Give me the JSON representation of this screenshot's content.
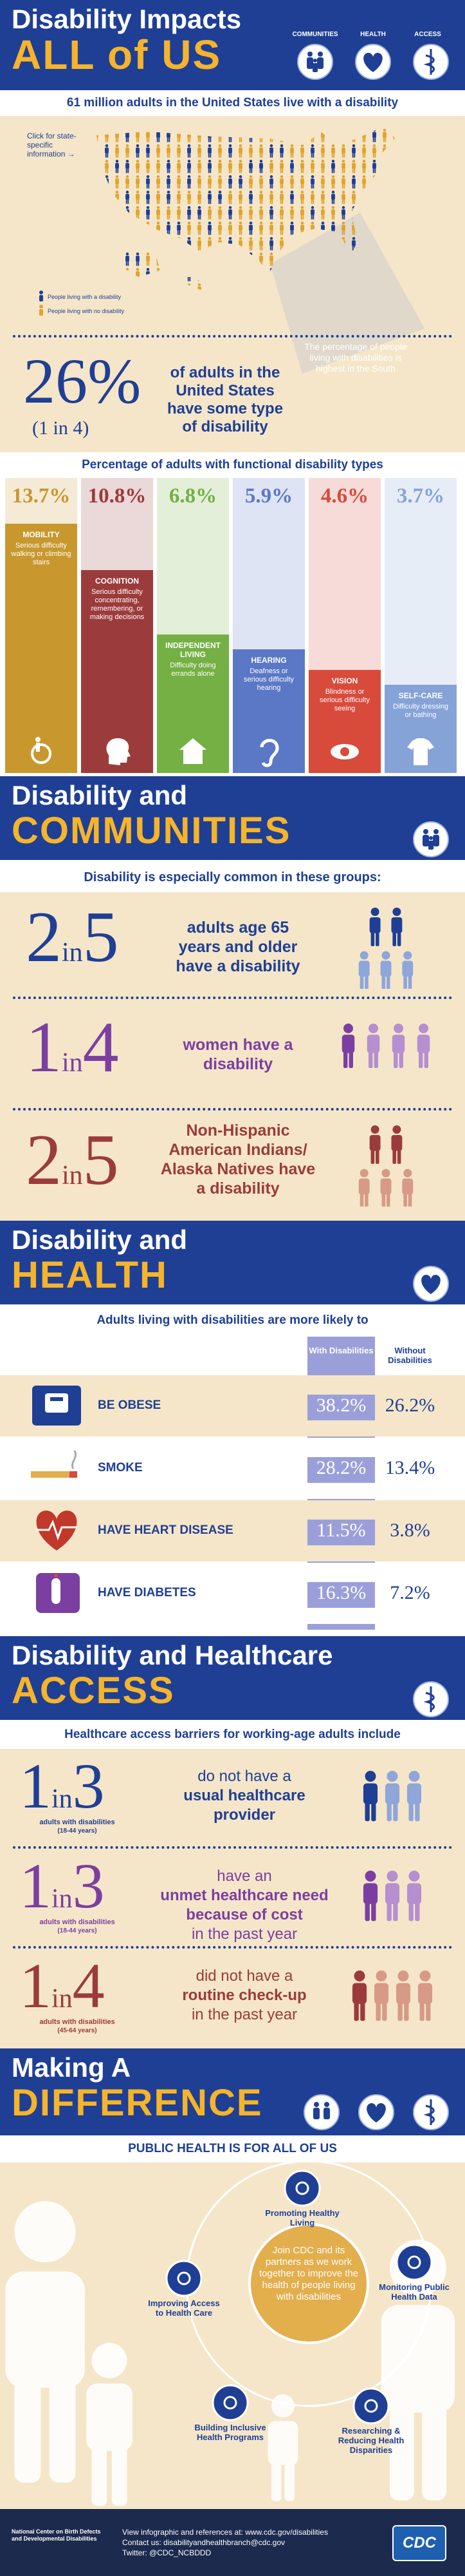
{
  "header": {
    "title_line1": "Disability Impacts",
    "title_line2": "ALL of US",
    "icons": [
      "COMMUNITIES",
      "HEALTH",
      "ACCESS"
    ]
  },
  "intro": {
    "headline": "61 million adults in the United States live with a disability",
    "map_link": "Click for state-specific information →",
    "legend": [
      "People living with a disability",
      "People living with no disability"
    ],
    "map_note": "The percentage of people living with disabilities is highest in the South"
  },
  "overall": {
    "percent": "26%",
    "ratio": "(1 in 4)",
    "text": "of adults in the United States have some type of disability"
  },
  "types": {
    "title": "Percentage of adults with functional disability types",
    "items": [
      {
        "value": 13.7,
        "label": "13.7%",
        "name": "MOBILITY",
        "description": "Serious difficulty walking or climbing stairs",
        "color": "#c8982f"
      },
      {
        "value": 10.8,
        "label": "10.8%",
        "name": "COGNITION",
        "description": "Serious difficulty concentrating, remembering, or making decisions",
        "color": "#9c3b3b"
      },
      {
        "value": 6.8,
        "label": "6.8%",
        "name": "INDEPENDENT LIVING",
        "description": "Difficulty doing errands alone",
        "color": "#74b043"
      },
      {
        "value": 5.9,
        "label": "5.9%",
        "name": "HEARING",
        "description": "Deafness or serious difficulty hearing",
        "color": "#5a78c6"
      },
      {
        "value": 4.6,
        "label": "4.6%",
        "name": "VISION",
        "description": "Blindness or serious difficulty seeing",
        "color": "#d84a3a"
      },
      {
        "value": 3.7,
        "label": "3.7%",
        "name": "SELF-CARE",
        "description": "Difficulty dressing or bathing",
        "color": "#86a3d8"
      }
    ]
  },
  "communities": {
    "title_line1": "Disability and",
    "title_line2": "COMMUNITIES",
    "subtitle": "Disability is especially common in these groups:",
    "groups": [
      {
        "number": "2",
        "word": "in",
        "of": "5",
        "text": "adults age 65 years and older have a disability"
      },
      {
        "number": "1",
        "word": "in",
        "of": "4",
        "text": "women have a disability"
      },
      {
        "number": "2",
        "word": "in",
        "of": "5",
        "text": "Non-Hispanic American Indians/ Alaska Natives have a disability"
      }
    ]
  },
  "health": {
    "title_line1": "Disability and",
    "title_line2": "HEALTH",
    "subtitle": "Adults living with disabilities are more likely to",
    "columns": [
      "With Disabilities",
      "Without Disabilities"
    ],
    "rows": [
      {
        "label": "BE OBESE",
        "with": "38.2%",
        "without": "26.2%"
      },
      {
        "label": "SMOKE",
        "with": "28.2%",
        "without": "13.4%"
      },
      {
        "label": "HAVE HEART DISEASE",
        "with": "11.5%",
        "without": "3.8%"
      },
      {
        "label": "HAVE DIABETES",
        "with": "16.3%",
        "without": "7.2%"
      }
    ]
  },
  "access": {
    "title_line1": "Disability and Healthcare",
    "title_line2": "ACCESS",
    "subtitle": "Healthcare access barriers for working-age adults include",
    "items": [
      {
        "number": "1",
        "word": "in",
        "of": "3",
        "group": "adults with disabilities",
        "ages": "(18-44 years)",
        "lead": "do not have a",
        "emphasis": "usual healthcare provider"
      },
      {
        "number": "1",
        "word": "in",
        "of": "3",
        "group": "adults with disabilities",
        "ages": "(18-44 years)",
        "lead": "have an",
        "emphasis": "unmet healthcare need because of cost",
        "tail": "in the past year"
      },
      {
        "number": "1",
        "word": "in",
        "of": "4",
        "group": "adults with disabilities",
        "ages": "(45-64 years)",
        "lead": "did not have a",
        "emphasis": "routine check-up",
        "tail": "in the past year"
      }
    ]
  },
  "difference": {
    "title_line1": "Making A",
    "title_line2": "DIFFERENCE",
    "subtitle": "PUBLIC HEALTH IS FOR ALL OF US",
    "center": "Join CDC and its partners as we work together to improve the health of people living with disabilities",
    "nodes": [
      "Promoting Healthy Living",
      "Monitoring Public Health Data",
      "Researching & Reducing Health Disparities",
      "Building Inclusive Health Programs",
      "Improving Access to Health Care"
    ]
  },
  "footer": {
    "org": "National Center on Birth Defects and Developmental Disabilities",
    "lines": [
      "View infographic and references at: www.cdc.gov/disabilities",
      "Contact us: disabilityandhealthbranch@cdc.gov",
      "Twitter: @CDC_NCBDDD"
    ],
    "logo": "CDC"
  }
}
